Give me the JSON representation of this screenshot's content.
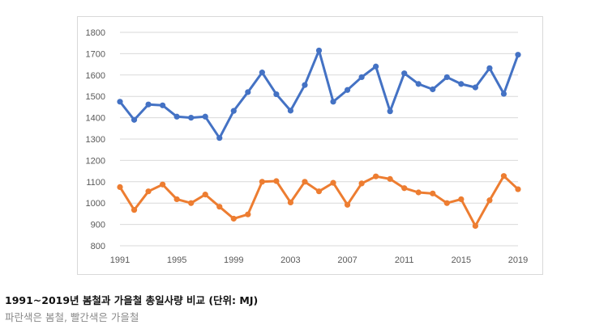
{
  "caption": {
    "title": "1991~2019년 봄철과 가을철 총일사량 비교 (단위: MJ)",
    "subtitle": "파란색은 봄철, 빨간색은 가을철"
  },
  "chart_data": {
    "type": "line",
    "x": [
      1991,
      1992,
      1993,
      1994,
      1995,
      1996,
      1997,
      1998,
      1999,
      2000,
      2001,
      2002,
      2003,
      2004,
      2005,
      2006,
      2007,
      2008,
      2009,
      2010,
      2011,
      2012,
      2013,
      2014,
      2015,
      2016,
      2017,
      2018,
      2019
    ],
    "xticks": [
      "1991",
      "1995",
      "1999",
      "2003",
      "2007",
      "2011",
      "2015",
      "2019"
    ],
    "yticks": [
      "800",
      "900",
      "1000",
      "1100",
      "1200",
      "1300",
      "1400",
      "1500",
      "1600",
      "1700",
      "1800"
    ],
    "ylim": [
      800,
      1800
    ],
    "xlim": [
      1991,
      2019
    ],
    "grid": true,
    "series": [
      {
        "color": "#4472c4",
        "values": [
          1475,
          1390,
          1462,
          1458,
          1405,
          1400,
          1405,
          1305,
          1432,
          1520,
          1612,
          1510,
          1433,
          1553,
          1715,
          1475,
          1530,
          1590,
          1640,
          1430,
          1608,
          1558,
          1533,
          1590,
          1558,
          1542,
          1632,
          1512,
          1695
        ]
      },
      {
        "color": "#ed7d31",
        "values": [
          1075,
          968,
          1055,
          1087,
          1018,
          1000,
          1040,
          983,
          927,
          947,
          1100,
          1103,
          1003,
          1100,
          1055,
          1095,
          992,
          1092,
          1125,
          1113,
          1070,
          1050,
          1045,
          1000,
          1018,
          893,
          1013,
          1127,
          1065
        ]
      }
    ]
  }
}
